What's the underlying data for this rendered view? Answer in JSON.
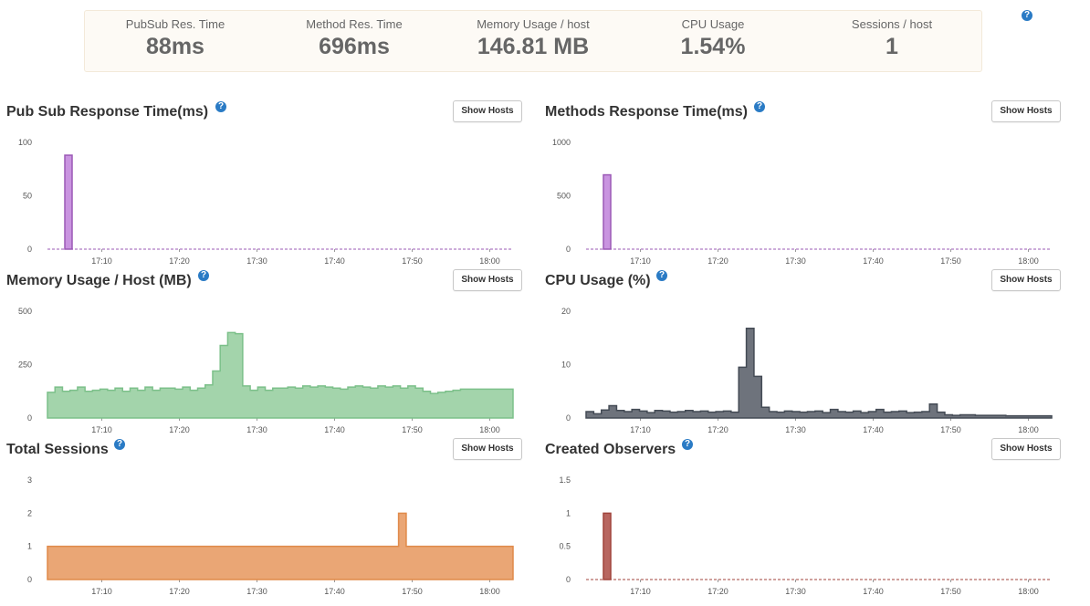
{
  "summary": {
    "stats": [
      {
        "label": "PubSub Res. Time",
        "value": "88ms"
      },
      {
        "label": "Method Res. Time",
        "value": "696ms"
      },
      {
        "label": "Memory Usage / host",
        "value": "146.81 MB"
      },
      {
        "label": "CPU Usage",
        "value": "1.54%"
      },
      {
        "label": "Sessions / host",
        "value": "1"
      }
    ],
    "help_icon": "question-circle-icon"
  },
  "show_hosts_label": "Show Hosts",
  "chart_data": [
    {
      "id": "pubsub",
      "type": "area",
      "title": "Pub Sub Response Time(ms)",
      "color": "#9b59b6",
      "fill": "#c994e0",
      "x_range": [
        "17:03",
        "18:03"
      ],
      "ylim": [
        0,
        100
      ],
      "y_ticks": [
        0,
        50,
        100
      ],
      "x_ticks": [
        "17:10",
        "17:20",
        "17:30",
        "17:40",
        "17:50",
        "18:00"
      ],
      "points": [
        {
          "t": "17:05",
          "v": 88
        }
      ]
    },
    {
      "id": "methods",
      "type": "area",
      "title": "Methods Response Time(ms)",
      "color": "#9b59b6",
      "fill": "#c994e0",
      "x_range": [
        "17:03",
        "18:03"
      ],
      "ylim": [
        0,
        1000
      ],
      "y_ticks": [
        0,
        500,
        1000
      ],
      "x_ticks": [
        "17:10",
        "17:20",
        "17:30",
        "17:40",
        "17:50",
        "18:00"
      ],
      "points": [
        {
          "t": "17:05",
          "v": 696
        }
      ]
    },
    {
      "id": "memory",
      "type": "area",
      "title": "Memory Usage / Host (MB)",
      "color": "#7cc08a",
      "fill": "#a3d4ab",
      "x_range": [
        "17:03",
        "18:03"
      ],
      "ylim": [
        0,
        500
      ],
      "y_ticks": [
        0,
        250,
        500
      ],
      "x_ticks": [
        "17:10",
        "17:20",
        "17:30",
        "17:40",
        "17:50",
        "18:00"
      ],
      "values": [
        120,
        145,
        125,
        130,
        145,
        125,
        130,
        135,
        130,
        140,
        125,
        140,
        130,
        145,
        130,
        140,
        140,
        135,
        145,
        130,
        140,
        155,
        220,
        340,
        400,
        395,
        150,
        130,
        145,
        130,
        140,
        140,
        145,
        140,
        150,
        145,
        150,
        145,
        140,
        135,
        145,
        150,
        145,
        140,
        150,
        145,
        150,
        140,
        150,
        140,
        125,
        115,
        120,
        125,
        130,
        135,
        135,
        135,
        135,
        135,
        135,
        135
      ]
    },
    {
      "id": "cpu",
      "type": "area",
      "title": "CPU Usage (%)",
      "color": "#444b55",
      "fill": "#6e737c",
      "x_range": [
        "17:03",
        "18:03"
      ],
      "ylim": [
        0,
        20
      ],
      "y_ticks": [
        0,
        10,
        20
      ],
      "x_ticks": [
        "17:10",
        "17:20",
        "17:30",
        "17:40",
        "17:50",
        "18:00"
      ],
      "values": [
        1.2,
        0.8,
        1.5,
        2.3,
        1.4,
        1.2,
        1.6,
        1.3,
        1.0,
        1.4,
        1.3,
        1.1,
        1.2,
        1.4,
        1.2,
        1.3,
        1.1,
        1.2,
        1.3,
        1.1,
        9.5,
        16.8,
        7.8,
        2.0,
        1.2,
        1.1,
        1.3,
        1.2,
        1.1,
        1.2,
        1.3,
        1.0,
        1.6,
        1.2,
        1.1,
        1.3,
        1.0,
        1.2,
        1.6,
        1.1,
        1.2,
        1.3,
        1.0,
        1.1,
        1.2,
        2.6,
        1.1,
        0.6,
        0.5,
        0.6,
        0.6,
        0.5,
        0.5,
        0.5,
        0.5,
        0.4,
        0.4,
        0.4,
        0.4,
        0.4,
        0.4
      ]
    },
    {
      "id": "sessions",
      "type": "area",
      "title": "Total Sessions",
      "color": "#e08a4a",
      "fill": "#eaa675",
      "x_range": [
        "17:03",
        "18:03"
      ],
      "ylim": [
        0,
        3
      ],
      "y_ticks": [
        0,
        1,
        2,
        3
      ],
      "x_ticks": [
        "17:10",
        "17:20",
        "17:30",
        "17:40",
        "17:50",
        "18:00"
      ],
      "values": [
        1,
        1,
        1,
        1,
        1,
        1,
        1,
        1,
        1,
        1,
        1,
        1,
        1,
        1,
        1,
        1,
        1,
        1,
        1,
        1,
        1,
        1,
        1,
        1,
        1,
        1,
        1,
        1,
        1,
        1,
        1,
        1,
        1,
        1,
        1,
        1,
        1,
        1,
        1,
        1,
        1,
        1,
        1,
        1,
        1,
        1,
        2,
        1,
        1,
        1,
        1,
        1,
        1,
        1,
        1,
        1,
        1,
        1,
        1,
        1,
        1
      ]
    },
    {
      "id": "observers",
      "type": "area",
      "title": "Created Observers",
      "color": "#a0433b",
      "fill": "#b86660",
      "x_range": [
        "17:03",
        "18:03"
      ],
      "ylim": [
        0,
        1.5
      ],
      "y_ticks": [
        0,
        0.5,
        1,
        1.5
      ],
      "x_ticks": [
        "17:10",
        "17:20",
        "17:30",
        "17:40",
        "17:50",
        "18:00"
      ],
      "points": [
        {
          "t": "17:05",
          "v": 1
        }
      ]
    }
  ]
}
